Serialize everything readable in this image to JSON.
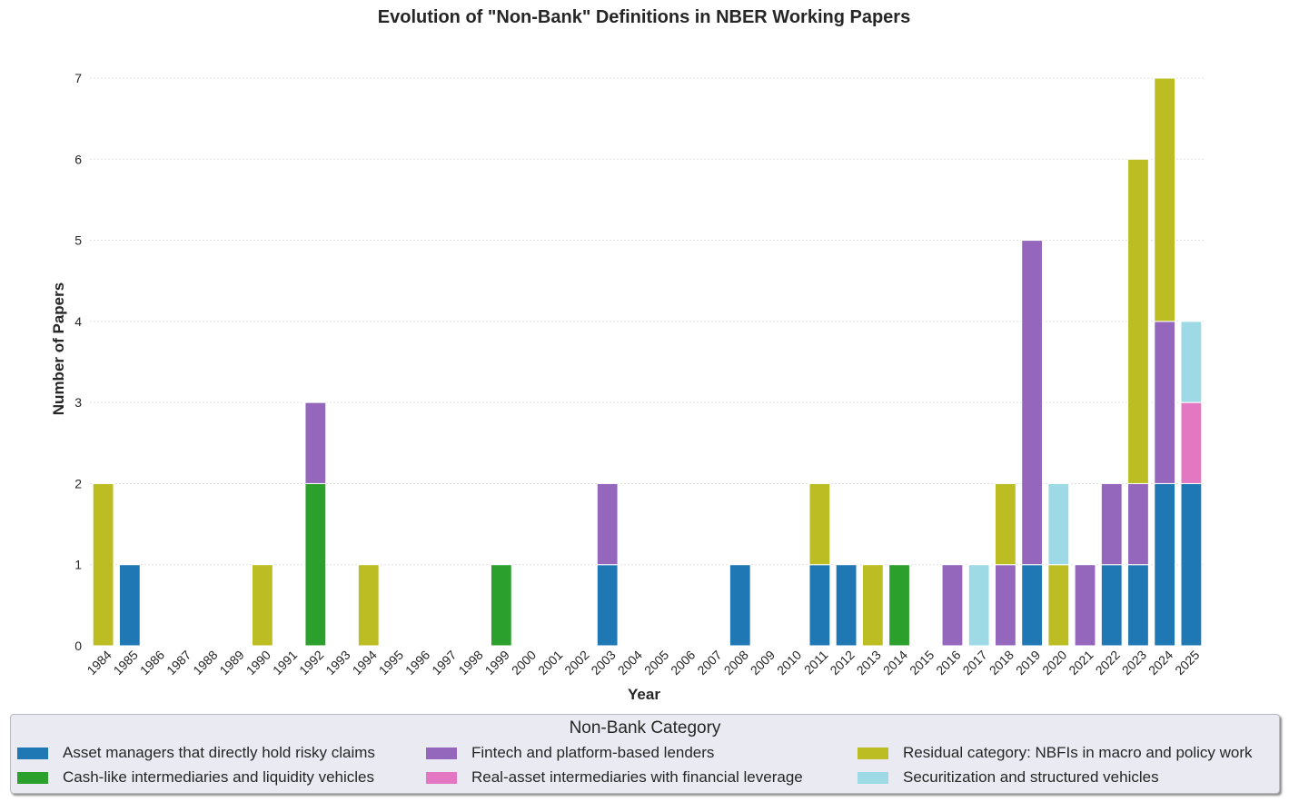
{
  "chart_data": {
    "type": "bar",
    "stacked": true,
    "title": "Evolution of \"Non-Bank\" Definitions in NBER Working Papers",
    "xlabel": "Year",
    "ylabel": "Number of Papers",
    "ylim": [
      0,
      7
    ],
    "yticks": [
      "0",
      "1",
      "2",
      "3",
      "4",
      "5",
      "6",
      "7"
    ],
    "grid": "horizontal dashed",
    "categories": [
      "1984",
      "1985",
      "1986",
      "1987",
      "1988",
      "1989",
      "1990",
      "1991",
      "1992",
      "1993",
      "1994",
      "1995",
      "1996",
      "1997",
      "1998",
      "1999",
      "2000",
      "2001",
      "2002",
      "2003",
      "2004",
      "2005",
      "2006",
      "2007",
      "2008",
      "2009",
      "2010",
      "2011",
      "2012",
      "2013",
      "2014",
      "2015",
      "2016",
      "2017",
      "2018",
      "2019",
      "2020",
      "2021",
      "2022",
      "2023",
      "2024",
      "2025"
    ],
    "legend": {
      "title": "Non-Bank Category",
      "position": "bottom"
    },
    "series": [
      {
        "name": "Asset managers that directly hold risky claims",
        "color": "#1f77b4",
        "values": [
          0,
          1,
          0,
          0,
          0,
          0,
          0,
          0,
          0,
          0,
          0,
          0,
          0,
          0,
          0,
          0,
          0,
          0,
          0,
          1,
          0,
          0,
          0,
          0,
          1,
          0,
          0,
          1,
          1,
          0,
          0,
          0,
          0,
          0,
          0,
          1,
          0,
          0,
          1,
          1,
          2,
          2
        ]
      },
      {
        "name": "Cash-like intermediaries and liquidity vehicles",
        "color": "#2ca02c",
        "values": [
          0,
          0,
          0,
          0,
          0,
          0,
          0,
          0,
          2,
          0,
          0,
          0,
          0,
          0,
          0,
          1,
          0,
          0,
          0,
          0,
          0,
          0,
          0,
          0,
          0,
          0,
          0,
          0,
          0,
          0,
          1,
          0,
          0,
          0,
          0,
          0,
          0,
          0,
          0,
          0,
          0,
          0
        ]
      },
      {
        "name": "Fintech and platform-based lenders",
        "color": "#9467bd",
        "values": [
          0,
          0,
          0,
          0,
          0,
          0,
          0,
          0,
          1,
          0,
          0,
          0,
          0,
          0,
          0,
          0,
          0,
          0,
          0,
          1,
          0,
          0,
          0,
          0,
          0,
          0,
          0,
          0,
          0,
          0,
          0,
          0,
          1,
          0,
          1,
          4,
          0,
          1,
          1,
          1,
          2,
          0
        ]
      },
      {
        "name": "Real-asset intermediaries with financial leverage",
        "color": "#e377c2",
        "values": [
          0,
          0,
          0,
          0,
          0,
          0,
          0,
          0,
          0,
          0,
          0,
          0,
          0,
          0,
          0,
          0,
          0,
          0,
          0,
          0,
          0,
          0,
          0,
          0,
          0,
          0,
          0,
          0,
          0,
          0,
          0,
          0,
          0,
          0,
          0,
          0,
          0,
          0,
          0,
          0,
          0,
          1
        ]
      },
      {
        "name": "Residual category: NBFIs in macro and policy work",
        "color": "#bcbd22",
        "values": [
          2,
          0,
          0,
          0,
          0,
          0,
          1,
          0,
          0,
          0,
          1,
          0,
          0,
          0,
          0,
          0,
          0,
          0,
          0,
          0,
          0,
          0,
          0,
          0,
          0,
          0,
          0,
          1,
          0,
          1,
          0,
          0,
          0,
          0,
          1,
          0,
          1,
          0,
          0,
          4,
          3,
          0
        ]
      },
      {
        "name": "Securitization and structured vehicles",
        "color": "#9edae5",
        "values": [
          0,
          0,
          0,
          0,
          0,
          0,
          0,
          0,
          0,
          0,
          0,
          0,
          0,
          0,
          0,
          0,
          0,
          0,
          0,
          0,
          0,
          0,
          0,
          0,
          0,
          0,
          0,
          0,
          0,
          0,
          0,
          0,
          0,
          1,
          0,
          0,
          1,
          0,
          0,
          0,
          0,
          1
        ]
      }
    ]
  }
}
